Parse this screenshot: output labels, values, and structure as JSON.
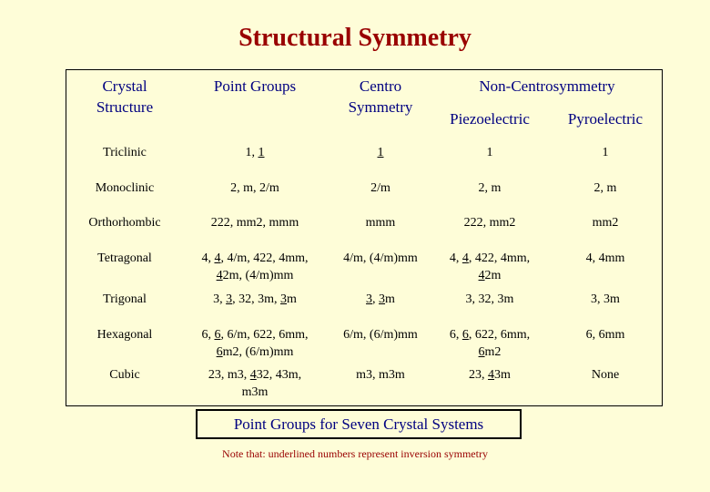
{
  "title": "Structural Symmetry",
  "headers": {
    "crystal_structure_line1": "Crystal",
    "crystal_structure_line2": "Structure",
    "point_groups": "Point Groups",
    "centro_line1": "Centro",
    "centro_line2": "Symmetry",
    "non_centro": "Non-Centrosymmetry",
    "piezo": "Piezoelectric",
    "pyro": "Pyroelectric"
  },
  "rows": [
    {
      "structure": "Triclinic",
      "point_groups": [
        "1, ",
        "1"
      ],
      "centro": "1",
      "piezo": "1",
      "pyro": "1"
    },
    {
      "structure": "Monoclinic",
      "point_groups": "2, m, 2/m",
      "centro": "2/m",
      "piezo": "2, m",
      "pyro": "2, m"
    },
    {
      "structure": "Orthorhombic",
      "point_groups": "222, mm2, mmm",
      "centro": "mmm",
      "piezo": "222, mm2",
      "pyro": "mm2"
    },
    {
      "structure": "Tetragonal",
      "point_groups_line1": [
        "4, ",
        "4",
        ", 4/m, 422, 4mm,"
      ],
      "point_groups_line2": [
        "",
        "4",
        "2m, (4/m)mm"
      ],
      "centro": "4/m, (4/m)mm",
      "piezo_line1": [
        "4, ",
        "4",
        ", 422, 4mm,"
      ],
      "piezo_line2": [
        "",
        "4",
        "2m"
      ],
      "pyro": "4, 4mm"
    },
    {
      "structure": "Trigonal",
      "point_groups": [
        "3, ",
        "3",
        ", 32, 3m, ",
        "3",
        "m"
      ],
      "centro": [
        "3",
        ", ",
        "3",
        "m"
      ],
      "piezo": "3, 32, 3m",
      "pyro": "3, 3m"
    },
    {
      "structure": "Hexagonal",
      "point_groups_line1": [
        "6, ",
        "6",
        ", 6/m, 622, 6mm,"
      ],
      "point_groups_line2": [
        "",
        "6",
        "m2, (6/m)mm"
      ],
      "centro": "6/m, (6/m)mm",
      "piezo_line1": [
        "6, ",
        "6",
        ", 622, 6mm,"
      ],
      "piezo_line2": [
        "",
        "6",
        "m2"
      ],
      "pyro": "6, 6mm"
    },
    {
      "structure": "Cubic",
      "point_groups_line1": [
        "23, m3, ",
        "4",
        "32, 43m,"
      ],
      "point_groups_line2": "m3m",
      "centro": "m3, m3m",
      "piezo": [
        "23, ",
        "4",
        "3m"
      ],
      "pyro": "None"
    }
  ],
  "caption": "Point Groups for Seven Crystal Systems",
  "note": "Note that: underlined numbers represent inversion symmetry",
  "colors": {
    "background": "#fefdd8",
    "title": "#990000",
    "header_text": "#000080",
    "note_text": "#990000"
  }
}
